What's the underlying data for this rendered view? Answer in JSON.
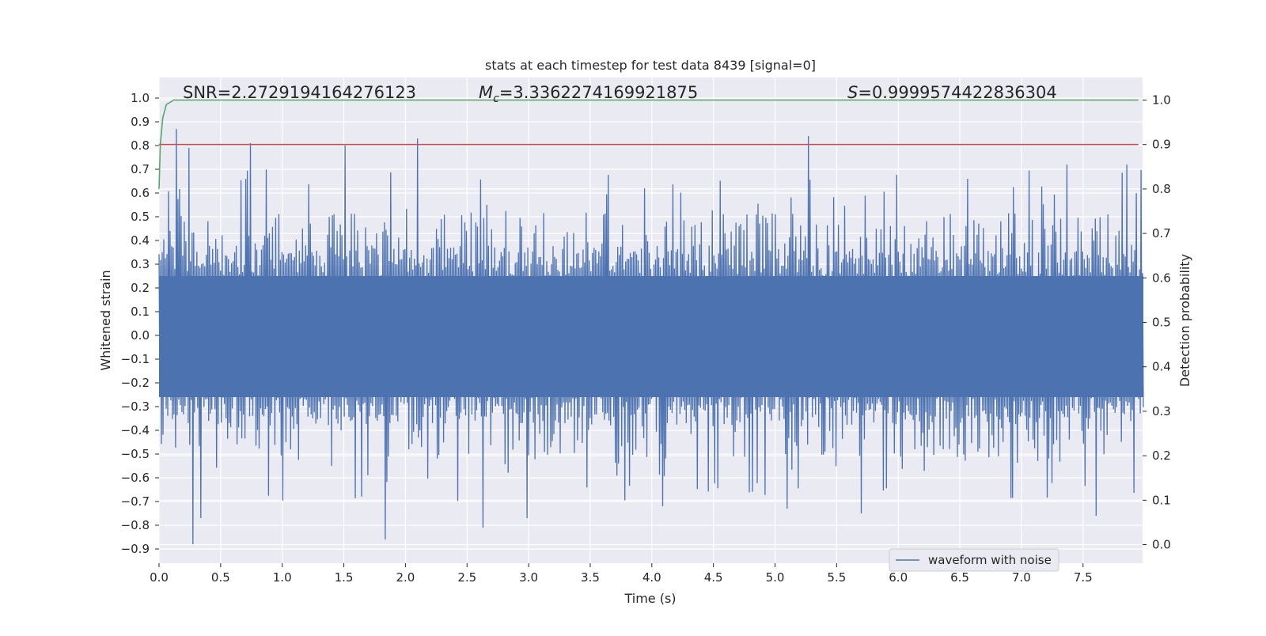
{
  "chart_data": {
    "type": "line",
    "title": "stats at each timestep for test data 8439 [signal=0]",
    "xlabel": "Time (s)",
    "ylabel_left": "Whitened strain",
    "ylabel_right": "Detection probability",
    "xlim": [
      0.0,
      8.0
    ],
    "ylim_left": [
      -1.0,
      1.05
    ],
    "ylim_right": [
      -0.05,
      1.05
    ],
    "x_ticks": [
      "0.0",
      "0.5",
      "1.0",
      "1.5",
      "2.0",
      "2.5",
      "3.0",
      "3.5",
      "4.0",
      "4.5",
      "5.0",
      "5.5",
      "6.0",
      "6.5",
      "7.0",
      "7.5"
    ],
    "y_ticks_left": [
      "1.0",
      "0.9",
      "0.8",
      "0.7",
      "0.6",
      "0.5",
      "0.4",
      "0.3",
      "0.2",
      "0.1",
      "0.0",
      "-0.1",
      "-0.2",
      "-0.3",
      "-0.4",
      "-0.5",
      "-0.6",
      "-0.7",
      "-0.8",
      "-0.9"
    ],
    "y_ticks_right": [
      "1.0",
      "0.9",
      "0.8",
      "0.7",
      "0.6",
      "0.5",
      "0.4",
      "0.3",
      "0.2",
      "0.1",
      "0.0"
    ],
    "grid": true,
    "legend": {
      "location": "lower right",
      "entries": [
        "waveform with noise"
      ]
    },
    "annotations": {
      "snr": "SNR=2.2729194164276123",
      "mc_symbol": "M",
      "mc_subscript": "c",
      "mc_value": "=3.3362274169921875",
      "s_symbol": "S",
      "s_value": "=0.9999574422836304"
    },
    "series": [
      {
        "name": "waveform with noise",
        "axis": "left",
        "color": "#4c72b0",
        "description": "dense whitened noise, bulk within about -0.45..0.45, spikes up to 0.87 and down to -0.88",
        "peaks_up": [
          [
            0.14,
            0.87
          ],
          [
            0.24,
            0.79
          ],
          [
            0.74,
            0.81
          ],
          [
            1.51,
            0.8
          ],
          [
            2.09,
            0.83
          ],
          [
            5.27,
            0.84
          ],
          [
            7.36,
            0.72
          ],
          [
            7.85,
            0.72
          ]
        ],
        "peaks_down": [
          [
            0.27,
            -0.88
          ],
          [
            0.34,
            -0.77
          ],
          [
            1.83,
            -0.86
          ],
          [
            2.63,
            -0.81
          ],
          [
            2.98,
            -0.77
          ],
          [
            4.09,
            -0.72
          ],
          [
            5.1,
            -0.73
          ],
          [
            5.7,
            -0.75
          ],
          [
            7.6,
            -0.76
          ]
        ]
      },
      {
        "axis": "right",
        "color": "#55a868",
        "x": [
          0.0,
          0.01,
          0.03,
          0.06,
          0.12,
          7.95
        ],
        "y": [
          0.8,
          0.9,
          0.96,
          0.99,
          1.0,
          1.0
        ]
      },
      {
        "axis": "right",
        "color": "#c44e52",
        "x": [
          0.0,
          7.95
        ],
        "y": [
          0.9,
          0.9
        ]
      }
    ]
  }
}
